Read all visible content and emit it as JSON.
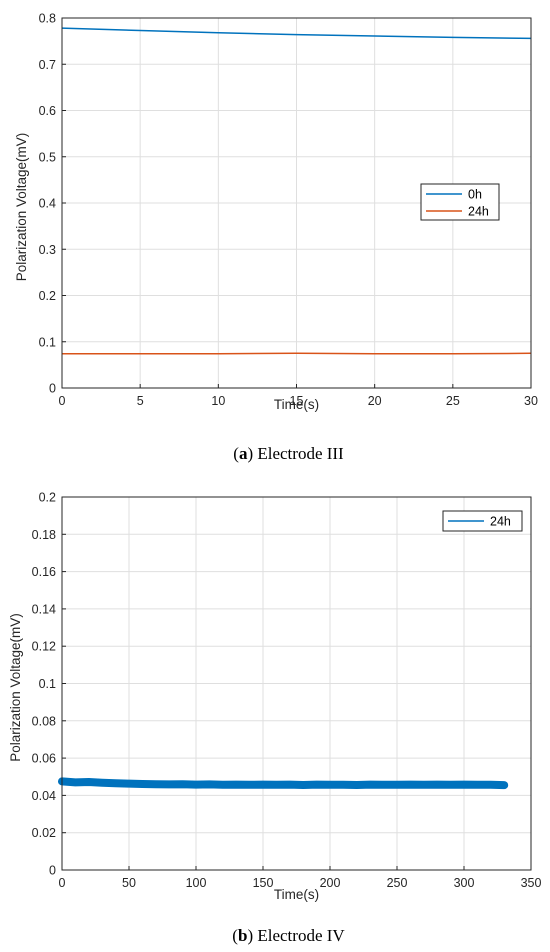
{
  "chart_data": [
    {
      "type": "line",
      "caption_letter": "a",
      "caption_paren_open": "(",
      "caption_paren_close": ")",
      "caption_text": " Electrode III",
      "xlabel": "Time(s)",
      "ylabel": "Polarization Voltage(mV)",
      "xlim": [
        0,
        30
      ],
      "ylim": [
        0,
        0.8
      ],
      "xticks": [
        0,
        5,
        10,
        15,
        20,
        25,
        30
      ],
      "xtick_labels": [
        "0",
        "5",
        "10",
        "15",
        "20",
        "25",
        "30"
      ],
      "yticks": [
        0,
        0.1,
        0.2,
        0.3,
        0.4,
        0.5,
        0.6,
        0.7,
        0.8
      ],
      "ytick_labels": [
        "0",
        "0.1",
        "0.2",
        "0.3",
        "0.4",
        "0.5",
        "0.6",
        "0.7",
        "0.8"
      ],
      "grid": true,
      "legend_position": "right",
      "series": [
        {
          "name": "0h",
          "color": "#0072BD",
          "x": [
            0,
            5,
            10,
            15,
            20,
            25,
            30
          ],
          "y": [
            0.778,
            0.773,
            0.768,
            0.764,
            0.761,
            0.758,
            0.756
          ]
        },
        {
          "name": "24h",
          "color": "#D95319",
          "x": [
            0,
            5,
            10,
            15,
            20,
            25,
            30
          ],
          "y": [
            0.074,
            0.074,
            0.074,
            0.075,
            0.074,
            0.074,
            0.075
          ]
        }
      ]
    },
    {
      "type": "line",
      "caption_letter": "b",
      "caption_paren_open": "(",
      "caption_paren_close": ")",
      "caption_text": " Electrode IV",
      "xlabel": "Time(s)",
      "ylabel": "Polarization Voltage(mV)",
      "xlim": [
        0,
        350
      ],
      "ylim": [
        0,
        0.2
      ],
      "xticks": [
        0,
        50,
        100,
        150,
        200,
        250,
        300,
        350
      ],
      "xtick_labels": [
        "0",
        "50",
        "100",
        "150",
        "200",
        "250",
        "300",
        "350"
      ],
      "yticks": [
        0,
        0.02,
        0.04,
        0.06,
        0.08,
        0.1,
        0.12,
        0.14,
        0.16,
        0.18,
        0.2
      ],
      "ytick_labels": [
        "0",
        "0.02",
        "0.04",
        "0.06",
        "0.08",
        "0.1",
        "0.12",
        "0.14",
        "0.16",
        "0.18",
        "0.2"
      ],
      "grid": true,
      "legend_position": "top-right",
      "series": [
        {
          "name": "24h",
          "color": "#0072BD",
          "x": [
            0,
            10,
            20,
            30,
            40,
            50,
            60,
            70,
            80,
            90,
            100,
            110,
            120,
            130,
            140,
            150,
            160,
            170,
            180,
            190,
            200,
            210,
            220,
            230,
            240,
            250,
            260,
            270,
            280,
            290,
            300,
            310,
            320,
            330
          ],
          "y": [
            0.0475,
            0.047,
            0.0472,
            0.0468,
            0.0465,
            0.0463,
            0.0461,
            0.046,
            0.0459,
            0.046,
            0.0458,
            0.0459,
            0.0457,
            0.0458,
            0.0457,
            0.0458,
            0.0457,
            0.0458,
            0.0456,
            0.0458,
            0.0457,
            0.0457,
            0.0456,
            0.0458,
            0.0457,
            0.0457,
            0.0458,
            0.0457,
            0.0458,
            0.0457,
            0.0458,
            0.0457,
            0.0457,
            0.0455
          ]
        }
      ]
    }
  ]
}
